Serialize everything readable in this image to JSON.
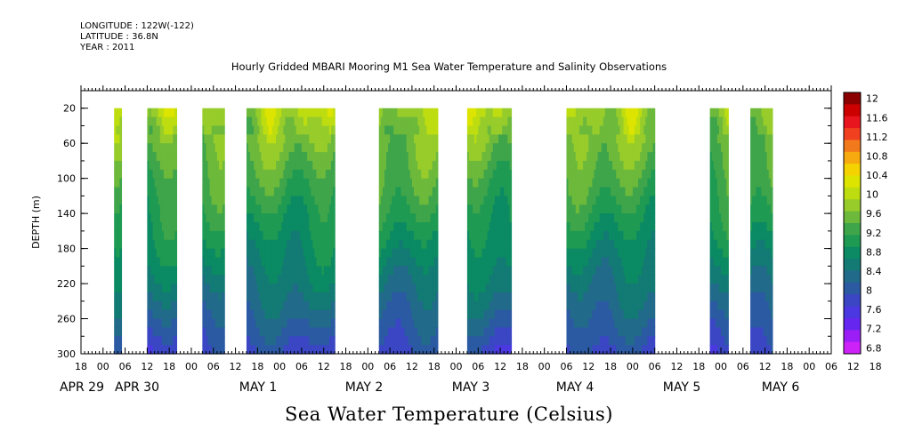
{
  "meta": {
    "longitude": "LONGITUDE : 122W(-122)",
    "latitude": "LATITUDE : 36.8N",
    "year": "YEAR : 2011"
  },
  "chart_data": {
    "type": "heatmap",
    "title": "Hourly Gridded MBARI Mooring M1 Sea Water Temperature and Salinity Observations",
    "xlabel": "Sea Water Temperature (Celsius)",
    "ylabel": "DEPTH (m)",
    "ylim": [
      300,
      0
    ],
    "yticks": [
      "20",
      "60",
      "100",
      "140",
      "180",
      "220",
      "260",
      "300"
    ],
    "xlim_hours": [
      -6,
      198
    ],
    "xtick_hour_labels": [
      "18",
      "00",
      "06",
      "12",
      "18",
      "00",
      "06",
      "12",
      "18",
      "00",
      "06",
      "12",
      "18",
      "00",
      "06",
      "12",
      "18",
      "00",
      "06",
      "12",
      "18",
      "00",
      "06",
      "12",
      "18",
      "00",
      "06",
      "12",
      "18",
      "00",
      "06",
      "12",
      "18",
      "00",
      "06",
      "12",
      "18"
    ],
    "date_labels": [
      "APR 29",
      "APR 30",
      "MAY  1",
      "MAY  2",
      "MAY  3",
      "MAY  4",
      "MAY  5",
      "MAY  6"
    ],
    "colorbar": {
      "levels": [
        "12",
        "11.6",
        "11.2",
        "10.8",
        "10.4",
        "10",
        "9.6",
        "9.2",
        "8.8",
        "8.4",
        "8",
        "7.6",
        "7.2",
        "6.8"
      ],
      "colors": [
        "#8b0000",
        "#cc0000",
        "#e8141e",
        "#f04020",
        "#f27a1c",
        "#f7aa10",
        "#f5d300",
        "#dce400",
        "#bedd10",
        "#97cc2a",
        "#6db93b",
        "#3fa54a",
        "#1e9a52",
        "#0b8a63",
        "#137a74",
        "#226a8a",
        "#2b5aa3",
        "#3a46c3",
        "#4b38e0",
        "#6626f0",
        "#9a1ef5",
        "#cc22f8"
      ],
      "min": 6.8,
      "max": 12
    },
    "segments_hours": [
      [
        3,
        5
      ],
      [
        12,
        20
      ],
      [
        27,
        33
      ],
      [
        39,
        63
      ],
      [
        75,
        91
      ],
      [
        99,
        111
      ],
      [
        126,
        150
      ],
      [
        165,
        170
      ],
      [
        176,
        182
      ]
    ],
    "grid": false
  }
}
